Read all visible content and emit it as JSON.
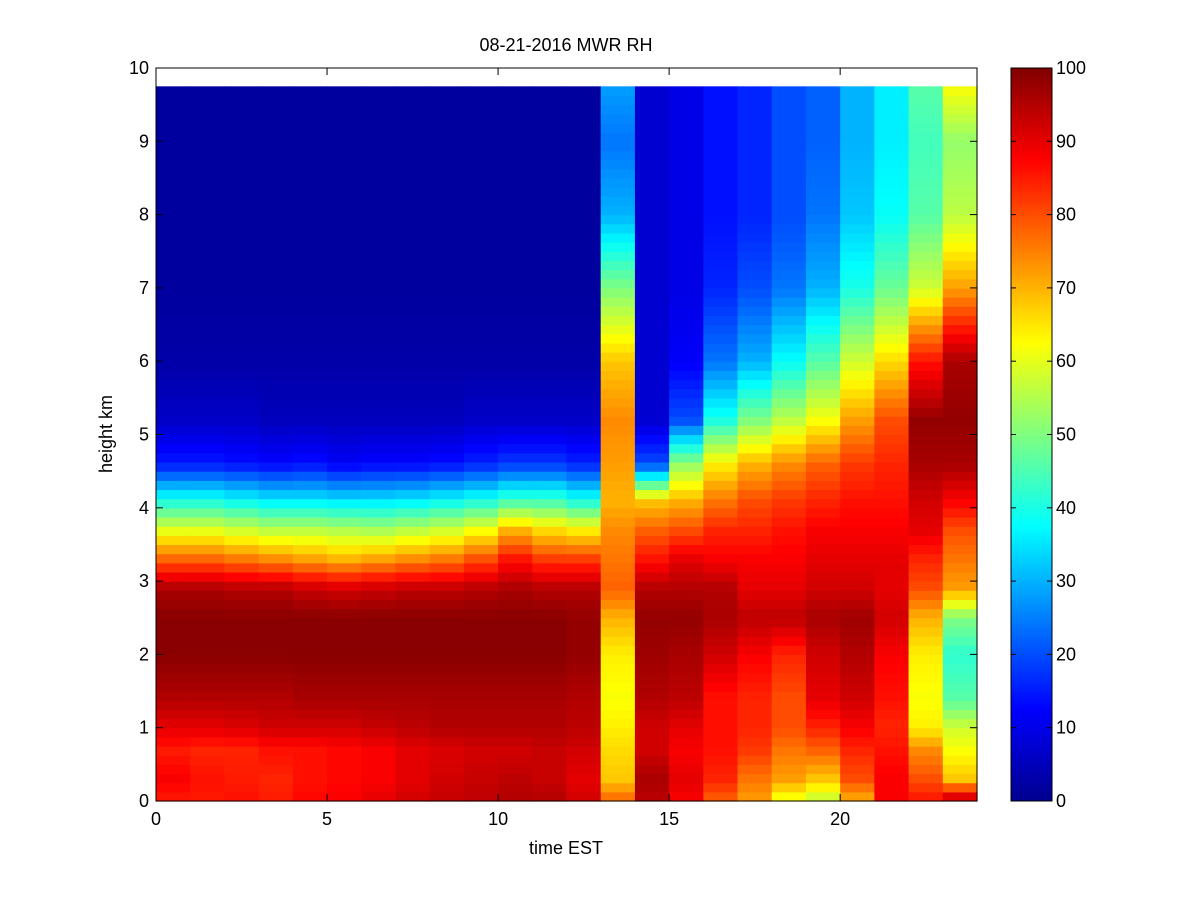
{
  "chart_data": {
    "type": "heatmap",
    "title": "08-21-2016 MWR RH",
    "xlabel": "time EST",
    "ylabel": "height km",
    "xlim": [
      0,
      24
    ],
    "ylim": [
      0,
      10
    ],
    "x_ticks": [
      0,
      5,
      10,
      15,
      20
    ],
    "y_ticks": [
      0,
      1,
      2,
      3,
      4,
      5,
      6,
      7,
      8,
      9,
      10
    ],
    "colorbar": {
      "range": [
        0,
        100
      ],
      "ticks": [
        0,
        10,
        20,
        30,
        40,
        50,
        60,
        70,
        80,
        90,
        100
      ],
      "colormap": "jet"
    },
    "grid": false,
    "columns_x": [
      0,
      1,
      2,
      3,
      4,
      5,
      6,
      7,
      8,
      9,
      10,
      11,
      12,
      13,
      14,
      15,
      16,
      17,
      18,
      19,
      20,
      21,
      22,
      23
    ],
    "height_breakpoints_km": [
      0,
      0.3,
      0.7,
      1.0,
      1.4,
      2.0,
      2.5,
      2.9,
      3.3,
      3.7,
      4.1,
      4.6,
      5.2,
      6.0,
      7.0,
      8.0,
      9.0,
      9.75
    ],
    "rh_profiles": [
      [
        85,
        88,
        85,
        90,
        95,
        99,
        99,
        96,
        78,
        60,
        40,
        15,
        7,
        4,
        3,
        3,
        3,
        3
      ],
      [
        85,
        86,
        84,
        90,
        95,
        99,
        99,
        96,
        78,
        60,
        40,
        15,
        7,
        4,
        3,
        3,
        3,
        3
      ],
      [
        86,
        85,
        84,
        91,
        95,
        99,
        99,
        95,
        76,
        58,
        38,
        14,
        7,
        4,
        3,
        3,
        3,
        3
      ],
      [
        85,
        84,
        86,
        92,
        95,
        99,
        99,
        95,
        74,
        56,
        36,
        13,
        6,
        4,
        3,
        3,
        3,
        3
      ],
      [
        87,
        86,
        86,
        92,
        96,
        99,
        99,
        93,
        72,
        56,
        36,
        14,
        6,
        4,
        3,
        3,
        3,
        3
      ],
      [
        88,
        87,
        87,
        92,
        96,
        99,
        99,
        92,
        70,
        55,
        35,
        12,
        6,
        4,
        3,
        3,
        3,
        3
      ],
      [
        90,
        88,
        88,
        93,
        96,
        99,
        99,
        93,
        72,
        54,
        35,
        13,
        6,
        4,
        3,
        3,
        3,
        3
      ],
      [
        92,
        90,
        90,
        94,
        96,
        99,
        99,
        94,
        74,
        56,
        36,
        13,
        6,
        4,
        3,
        3,
        3,
        3
      ],
      [
        93,
        92,
        91,
        95,
        96,
        99,
        99,
        94,
        76,
        58,
        38,
        14,
        6,
        4,
        3,
        3,
        3,
        3
      ],
      [
        94,
        93,
        92,
        95,
        96,
        99,
        99,
        95,
        80,
        62,
        40,
        16,
        7,
        4,
        3,
        3,
        3,
        3
      ],
      [
        95,
        94,
        92,
        95,
        96,
        99,
        99,
        96,
        86,
        70,
        44,
        18,
        7,
        4,
        3,
        3,
        3,
        3
      ],
      [
        95,
        93,
        93,
        95,
        96,
        99,
        99,
        95,
        82,
        66,
        44,
        18,
        7,
        4,
        3,
        3,
        3,
        3
      ],
      [
        92,
        90,
        92,
        94,
        95,
        98,
        98,
        95,
        82,
        64,
        40,
        16,
        7,
        4,
        3,
        3,
        3,
        3
      ],
      [
        78,
        68,
        66,
        64,
        62,
        64,
        70,
        78,
        76,
        74,
        70,
        72,
        74,
        68,
        50,
        30,
        24,
        28
      ],
      [
        94,
        96,
        92,
        92,
        95,
        97,
        98,
        95,
        86,
        78,
        68,
        20,
        8,
        8,
        8,
        8,
        8,
        8
      ],
      [
        88,
        90,
        88,
        90,
        94,
        96,
        98,
        95,
        90,
        80,
        70,
        52,
        20,
        12,
        10,
        10,
        10,
        10
      ],
      [
        78,
        84,
        86,
        86,
        86,
        92,
        96,
        95,
        88,
        84,
        76,
        64,
        40,
        24,
        16,
        14,
        14,
        14
      ],
      [
        72,
        76,
        82,
        84,
        84,
        88,
        94,
        90,
        88,
        84,
        80,
        70,
        50,
        30,
        20,
        16,
        16,
        16
      ],
      [
        60,
        72,
        76,
        80,
        80,
        84,
        94,
        90,
        88,
        86,
        82,
        74,
        56,
        38,
        24,
        20,
        20,
        20
      ],
      [
        56,
        68,
        78,
        84,
        90,
        92,
        96,
        92,
        90,
        88,
        84,
        78,
        62,
        46,
        30,
        24,
        22,
        22
      ],
      [
        70,
        80,
        84,
        88,
        92,
        95,
        97,
        92,
        90,
        88,
        86,
        82,
        72,
        58,
        40,
        32,
        30,
        30
      ],
      [
        88,
        88,
        86,
        84,
        86,
        88,
        92,
        90,
        90,
        88,
        86,
        84,
        80,
        66,
        48,
        38,
        36,
        36
      ],
      [
        86,
        80,
        74,
        64,
        62,
        64,
        70,
        80,
        84,
        90,
        92,
        96,
        98,
        86,
        58,
        46,
        44,
        46
      ],
      [
        96,
        68,
        62,
        58,
        46,
        42,
        50,
        72,
        76,
        80,
        88,
        96,
        98,
        96,
        72,
        56,
        52,
        62
      ]
    ]
  }
}
